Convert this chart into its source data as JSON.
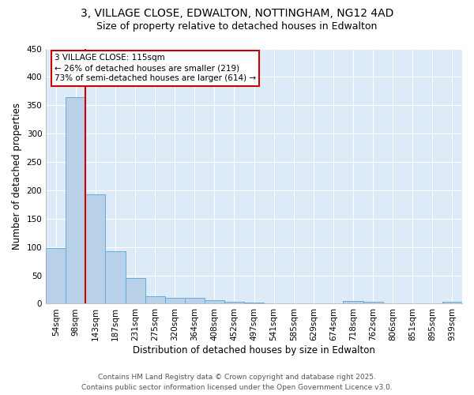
{
  "title_line1": "3, VILLAGE CLOSE, EDWALTON, NOTTINGHAM, NG12 4AD",
  "title_line2": "Size of property relative to detached houses in Edwalton",
  "xlabel": "Distribution of detached houses by size in Edwalton",
  "ylabel": "Number of detached properties",
  "categories": [
    "54sqm",
    "98sqm",
    "143sqm",
    "187sqm",
    "231sqm",
    "275sqm",
    "320sqm",
    "364sqm",
    "408sqm",
    "452sqm",
    "497sqm",
    "541sqm",
    "585sqm",
    "629sqm",
    "674sqm",
    "718sqm",
    "762sqm",
    "806sqm",
    "851sqm",
    "895sqm",
    "939sqm"
  ],
  "values": [
    98,
    365,
    193,
    93,
    45,
    13,
    10,
    10,
    6,
    4,
    2,
    1,
    1,
    0,
    0,
    5,
    3,
    0,
    0,
    0,
    3
  ],
  "bar_color": "#b8d0e8",
  "bar_edge_color": "#6aaad4",
  "red_line_x": 1.5,
  "annotation_text": "3 VILLAGE CLOSE: 115sqm\n← 26% of detached houses are smaller (219)\n73% of semi-detached houses are larger (614) →",
  "annotation_box_color": "#ffffff",
  "annotation_box_edge_color": "#cc0000",
  "red_line_color": "#cc0000",
  "ylim": [
    0,
    450
  ],
  "yticks": [
    0,
    50,
    100,
    150,
    200,
    250,
    300,
    350,
    400,
    450
  ],
  "background_color": "#ddeaf7",
  "grid_color": "#ffffff",
  "fig_background": "#ffffff",
  "footer_line1": "Contains HM Land Registry data © Crown copyright and database right 2025.",
  "footer_line2": "Contains public sector information licensed under the Open Government Licence v3.0.",
  "title_fontsize": 10,
  "subtitle_fontsize": 9,
  "axis_label_fontsize": 8.5,
  "tick_fontsize": 7.5,
  "annotation_fontsize": 7.5,
  "footer_fontsize": 6.5
}
